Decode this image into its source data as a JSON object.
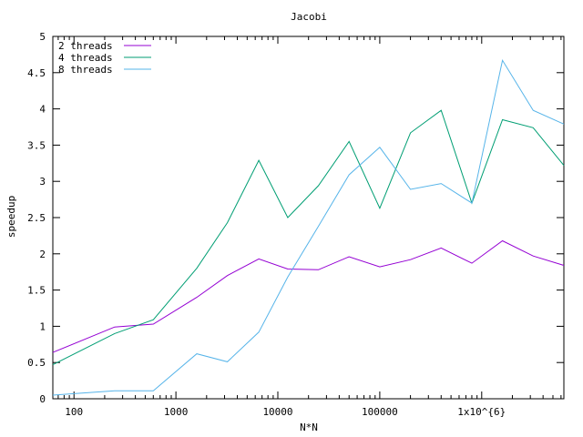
{
  "chart_data": {
    "type": "line",
    "title": "Jacobi",
    "xlabel": "N*N",
    "ylabel": "speedup",
    "x_scale": "log",
    "xlim": [
      62,
      6400000
    ],
    "ylim": [
      0,
      5
    ],
    "grid": false,
    "legend_position": "top-left",
    "x_ticks": [
      {
        "value": 100,
        "label": "100"
      },
      {
        "value": 1000,
        "label": "1000"
      },
      {
        "value": 10000,
        "label": "10000"
      },
      {
        "value": 100000,
        "label": "100000"
      },
      {
        "value": 1000000,
        "label": "1x10^{6}"
      }
    ],
    "y_ticks": [
      {
        "value": 0,
        "label": "0"
      },
      {
        "value": 0.5,
        "label": "0.5"
      },
      {
        "value": 1,
        "label": "1"
      },
      {
        "value": 1.5,
        "label": "1.5"
      },
      {
        "value": 2,
        "label": "2"
      },
      {
        "value": 2.5,
        "label": "2.5"
      },
      {
        "value": 3,
        "label": "3"
      },
      {
        "value": 3.5,
        "label": "3.5"
      },
      {
        "value": 4,
        "label": "4"
      },
      {
        "value": 4.5,
        "label": "4.5"
      },
      {
        "value": 5,
        "label": "5"
      }
    ],
    "series": [
      {
        "name": "2 threads",
        "color": "#9400d3",
        "x": [
          62,
          250,
          600,
          1600,
          3200,
          6500,
          12500,
          25000,
          50000,
          100000,
          200000,
          400000,
          800000,
          1600000,
          3200000,
          6400000
        ],
        "y": [
          0.64,
          0.99,
          1.03,
          1.4,
          1.7,
          1.93,
          1.79,
          1.78,
          1.96,
          1.82,
          1.92,
          2.08,
          1.87,
          2.18,
          1.97,
          1.84
        ]
      },
      {
        "name": "4 threads",
        "color": "#009e73",
        "x": [
          62,
          250,
          600,
          1600,
          3200,
          6500,
          12500,
          25000,
          50000,
          100000,
          200000,
          400000,
          800000,
          1600000,
          3200000,
          6400000
        ],
        "y": [
          0.47,
          0.9,
          1.09,
          1.8,
          2.43,
          3.29,
          2.5,
          2.94,
          3.55,
          2.63,
          3.67,
          3.98,
          2.7,
          3.85,
          3.74,
          3.22
        ]
      },
      {
        "name": "8 threads",
        "color": "#56b4e9",
        "x": [
          62,
          250,
          600,
          1600,
          3200,
          6500,
          12500,
          25000,
          50000,
          100000,
          200000,
          400000,
          800000,
          1600000,
          3200000,
          6400000
        ],
        "y": [
          0.05,
          0.11,
          0.11,
          0.62,
          0.51,
          0.92,
          1.68,
          2.38,
          3.09,
          3.47,
          2.89,
          2.97,
          2.7,
          4.67,
          3.98,
          3.79
        ]
      }
    ]
  }
}
